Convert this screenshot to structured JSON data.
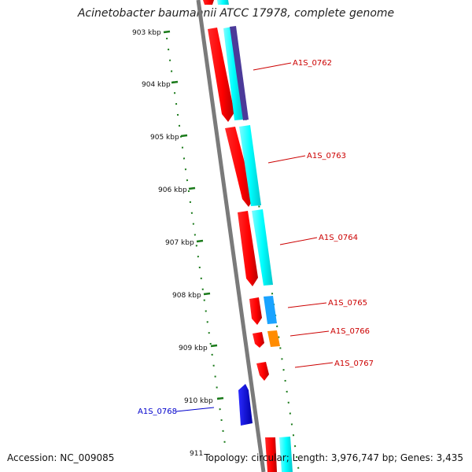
{
  "title": "Acinetobacter baumannii ATCC 17978, complete genome",
  "accession": "Accession: NC_009085",
  "summary": "Topology: circular; Length: 3,976,747 bp; Genes: 3,435",
  "ticks": [
    "903 kbp",
    "904 kbp",
    "905 kbp",
    "906 kbp",
    "907 kbp",
    "908 kbp",
    "909 kbp",
    "910 kbp",
    "911"
  ],
  "gene_labels": [
    {
      "text": "A1S_0762",
      "color": "#cc0000"
    },
    {
      "text": "A1S_0763",
      "color": "#cc0000"
    },
    {
      "text": "A1S_0764",
      "color": "#cc0000"
    },
    {
      "text": "A1S_0765",
      "color": "#cc0000"
    },
    {
      "text": "A1S_0766",
      "color": "#cc0000"
    },
    {
      "text": "A1S_0767",
      "color": "#cc0000"
    },
    {
      "text": "A1S_0768",
      "color": "#0000cc"
    }
  ],
  "colors": {
    "cds_red": "#ff0000",
    "cds_cyan": "#00ffff",
    "cds_blue": "#0000ee",
    "cds_orange": "#ff8c00",
    "cds_slate": "#4b3a99",
    "cds_sky": "#1aa3ff",
    "tick_green": "#006600",
    "backbone": "#808080"
  }
}
